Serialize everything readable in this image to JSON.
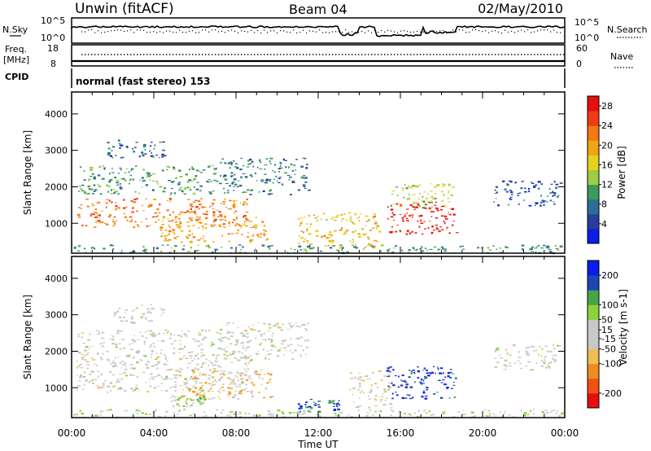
{
  "header": {
    "station": "Unwin (fitACF)",
    "beam": "Beam 04",
    "date": "02/May/2010"
  },
  "summary_panels": {
    "nsky_label": "N.Sky",
    "nsky_ticks": [
      "10^5",
      "10^0"
    ],
    "nsearch_label": "N.Search",
    "nsearch_ticks": [
      "10^5",
      "10^0"
    ],
    "freq_label": "Freq.",
    "freq_unit": "[MHz]",
    "freq_ticks": [
      "18",
      "8"
    ],
    "nave_label": "Nave",
    "nave_ticks": [
      "60",
      "0"
    ],
    "cpid_label": "CPID",
    "cpid_text": "normal (fast stereo) 153"
  },
  "colors": {
    "power_scale": [
      "#0a1ee6",
      "#283c9b",
      "#2d6e96",
      "#3c9b5a",
      "#9bcd46",
      "#e6d21e",
      "#f0a514",
      "#f57814",
      "#f03c14",
      "#e60f0f"
    ],
    "velocity_scale": [
      "#e60f0f",
      "#f05014",
      "#f08c1e",
      "#f0be50",
      "#c8c8c8",
      "#c8c8c8",
      "#8cd23c",
      "#46a546",
      "#1e46b4",
      "#0a1ee6"
    ]
  },
  "chart_data": [
    {
      "type": "heatmap",
      "name": "power",
      "xlabel": "Time UT",
      "ylabel": "Slant Range [km]",
      "xlim": [
        0,
        24
      ],
      "ylim": [
        180,
        4600
      ],
      "x_ticks": [
        "00:00",
        "04:00",
        "08:00",
        "12:00",
        "16:00",
        "20:00",
        "00:00"
      ],
      "y_ticks": [
        1000,
        2000,
        3000,
        4000
      ],
      "colorbar": {
        "label": "Power [dB]",
        "ticks": [
          4,
          8,
          12,
          16,
          20,
          24,
          28
        ],
        "range": [
          0,
          30
        ]
      },
      "regions": [
        {
          "t": [
            0.2,
            8.7
          ],
          "r": [
            900,
            1700
          ],
          "value": 22
        },
        {
          "t": [
            4.3,
            9.6
          ],
          "r": [
            500,
            1200
          ],
          "value": 20
        },
        {
          "t": [
            0.3,
            7.0
          ],
          "r": [
            1800,
            2600
          ],
          "value": 10
        },
        {
          "t": [
            1.5,
            4.5
          ],
          "r": [
            2800,
            3300
          ],
          "value": 6
        },
        {
          "t": [
            7.0,
            11.5
          ],
          "r": [
            1800,
            2800
          ],
          "value": 8
        },
        {
          "t": [
            11.0,
            15.0
          ],
          "r": [
            350,
            1300
          ],
          "value": 18
        },
        {
          "t": [
            15.3,
            18.7
          ],
          "r": [
            700,
            1600
          ],
          "value": 28
        },
        {
          "t": [
            15.5,
            18.5
          ],
          "r": [
            1400,
            2100
          ],
          "value": 14
        },
        {
          "t": [
            20.5,
            23.8
          ],
          "r": [
            1500,
            2200
          ],
          "value": 6
        },
        {
          "t": [
            0.0,
            24.0
          ],
          "r": [
            200,
            420
          ],
          "value": 10
        }
      ]
    },
    {
      "type": "heatmap",
      "name": "velocity",
      "xlabel": "Time UT",
      "ylabel": "Slant Range [km]",
      "xlim": [
        0,
        24
      ],
      "ylim": [
        180,
        4600
      ],
      "x_ticks": [
        "00:00",
        "04:00",
        "08:00",
        "12:00",
        "16:00",
        "20:00",
        "00:00"
      ],
      "y_ticks": [
        1000,
        2000,
        3000,
        4000
      ],
      "colorbar": {
        "label": "Velocity [m s-1]",
        "ticks": [
          -200,
          -100,
          -50,
          -15,
          15,
          50,
          100,
          200
        ],
        "range": [
          -250,
          250
        ]
      },
      "regions": [
        {
          "t": [
            0.2,
            8.7
          ],
          "r": [
            900,
            2600
          ],
          "value": 0
        },
        {
          "t": [
            2.0,
            4.5
          ],
          "r": [
            2800,
            3300
          ],
          "value": 0
        },
        {
          "t": [
            7.0,
            11.5
          ],
          "r": [
            1800,
            2800
          ],
          "value": 0
        },
        {
          "t": [
            5.0,
            9.7
          ],
          "r": [
            650,
            1500
          ],
          "value": -70
        },
        {
          "t": [
            4.8,
            6.5
          ],
          "r": [
            500,
            800
          ],
          "value": 60
        },
        {
          "t": [
            11.0,
            13.0
          ],
          "r": [
            350,
            700
          ],
          "value": 180
        },
        {
          "t": [
            13.5,
            15.5
          ],
          "r": [
            450,
            1500
          ],
          "value": -30
        },
        {
          "t": [
            15.3,
            18.7
          ],
          "r": [
            700,
            1600
          ],
          "value": 200
        },
        {
          "t": [
            20.5,
            23.8
          ],
          "r": [
            1500,
            2200
          ],
          "value": 0
        },
        {
          "t": [
            0.0,
            24.0
          ],
          "r": [
            200,
            420
          ],
          "value": 30
        }
      ]
    }
  ]
}
